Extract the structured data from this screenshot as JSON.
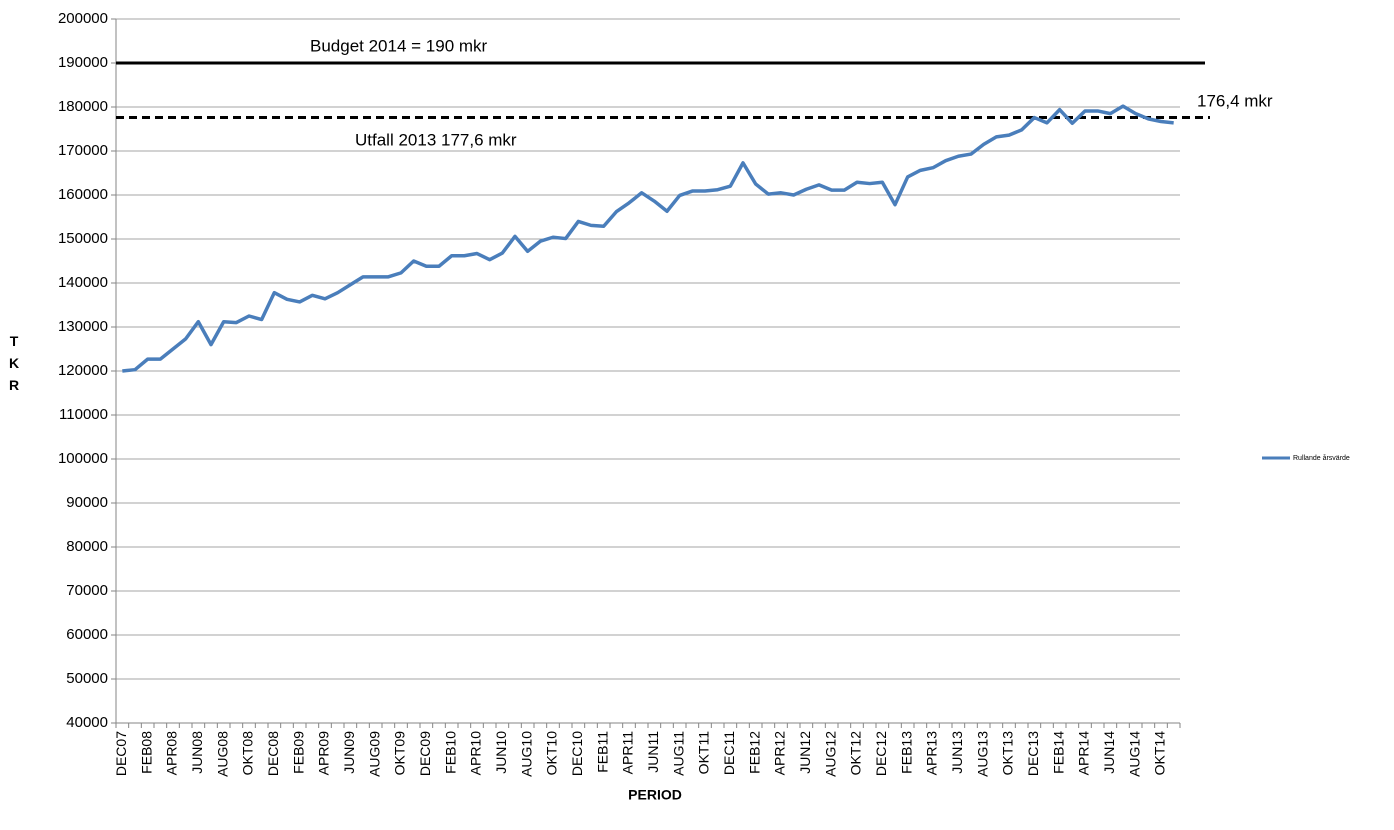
{
  "chart_data": {
    "type": "line",
    "x_label": "PERIOD",
    "y_label": "TKR",
    "categories": [
      "DEC07",
      null,
      "FEB08",
      null,
      "APR08",
      null,
      "JUN08",
      null,
      "AUG08",
      null,
      "OKT08",
      null,
      "DEC08",
      null,
      "FEB09",
      null,
      "APR09",
      null,
      "JUN09",
      null,
      "AUG09",
      null,
      "OKT09",
      null,
      "DEC09",
      null,
      "FEB10",
      null,
      "APR10",
      null,
      "JUN10",
      null,
      "AUG10",
      null,
      "OKT10",
      null,
      "DEC10",
      null,
      "FEB11",
      null,
      "APR11",
      null,
      "JUN11",
      null,
      "AUG11",
      null,
      "OKT11",
      null,
      "DEC11",
      null,
      "FEB12",
      null,
      "APR12",
      null,
      "JUN12",
      null,
      "AUG12",
      null,
      "OKT12",
      null,
      "DEC12",
      null,
      "FEB13",
      null,
      "APR13",
      null,
      "JUN13",
      null,
      "AUG13",
      null,
      "OKT13",
      null,
      "DEC13",
      null,
      "FEB14",
      null,
      "APR14",
      null,
      "JUN14",
      null,
      "AUG14",
      null,
      "OKT14",
      null
    ],
    "series": [
      {
        "name": "Rullande årsvärde",
        "color": "#4a7ebb",
        "values": [
          120000,
          120300,
          122700,
          122700,
          125000,
          127300,
          131200,
          126000,
          131200,
          131000,
          132500,
          131700,
          137800,
          136300,
          135700,
          137200,
          136400,
          137800,
          139600,
          141400,
          141400,
          141400,
          142300,
          145000,
          143800,
          143800,
          146200,
          146200,
          146700,
          145300,
          146800,
          150600,
          147200,
          149500,
          150400,
          150100,
          154000,
          153100,
          152900,
          156200,
          158200,
          160500,
          158600,
          156300,
          159900,
          160900,
          160900,
          161200,
          162000,
          167300,
          162500,
          160200,
          160500,
          160000,
          161300,
          162300,
          161100,
          161100,
          162900,
          162600,
          162900,
          157800,
          164100,
          165600,
          166200,
          167800,
          168800,
          169300,
          171500,
          173200,
          173600,
          174800,
          177600,
          176400,
          179400,
          176300,
          179100,
          179100,
          178500,
          180200,
          178500,
          177300,
          176700,
          176400
        ]
      }
    ],
    "reference_lines": [
      {
        "value": 190000,
        "dashed": false,
        "color": "#000000"
      },
      {
        "value": 177600,
        "dashed": true,
        "color": "#000000"
      }
    ],
    "annotations": [
      "Budget 2014  = 190 mkr",
      "Utfall 2013 177,6 mkr",
      "176,4 mkr"
    ],
    "ylim": [
      40000,
      200000
    ],
    "yticks": [
      40000,
      50000,
      60000,
      70000,
      80000,
      90000,
      100000,
      110000,
      120000,
      130000,
      140000,
      150000,
      160000,
      170000,
      180000,
      190000,
      200000
    ],
    "grid": true,
    "legend": "right"
  }
}
